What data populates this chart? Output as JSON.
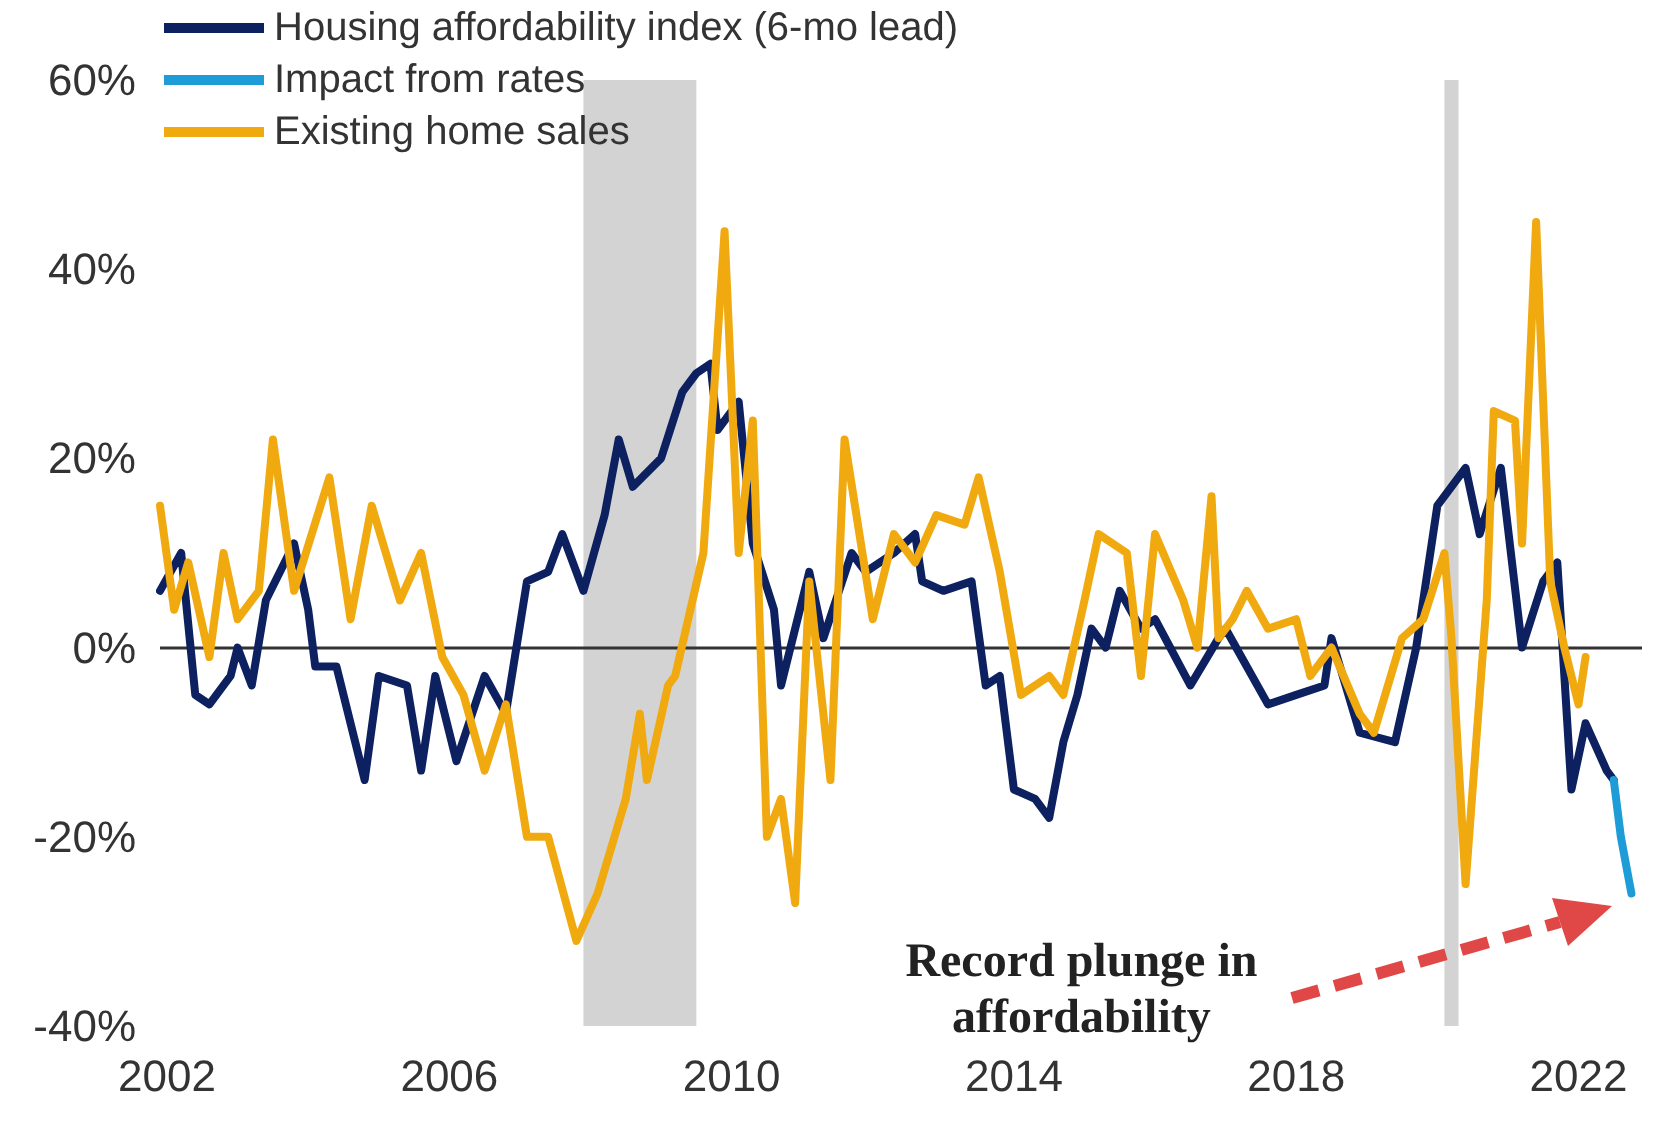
{
  "chart_data": {
    "type": "line",
    "xlim": [
      2001.9,
      2022.9
    ],
    "xticks": [
      2002,
      2006,
      2010,
      2014,
      2018,
      2022
    ],
    "ylim": [
      -40,
      60
    ],
    "yticks": [
      {
        "value": -40,
        "label": "-40%"
      },
      {
        "value": -20,
        "label": "-20%"
      },
      {
        "value": 0,
        "label": "0%"
      },
      {
        "value": 20,
        "label": "20%"
      },
      {
        "value": 40,
        "label": "40%"
      },
      {
        "value": 60,
        "label": "60%"
      }
    ],
    "grid": false,
    "legend": "top left",
    "marker": "none",
    "line_style": "solid",
    "series": [
      {
        "name": "Housing affordability index (6-mo lead)",
        "color": "#0d2160",
        "x": [
          2001.9,
          2002.2,
          2002.4,
          2002.6,
          2002.9,
          2003.0,
          2003.2,
          2003.4,
          2003.8,
          2004.0,
          2004.1,
          2004.4,
          2004.8,
          2005.0,
          2005.4,
          2005.6,
          2005.8,
          2006.1,
          2006.5,
          2006.8,
          2007.1,
          2007.4,
          2007.6,
          2007.9,
          2008.2,
          2008.4,
          2008.6,
          2009.0,
          2009.3,
          2009.5,
          2009.7,
          2009.8,
          2010.1,
          2010.3,
          2010.6,
          2010.7,
          2011.1,
          2011.3,
          2011.7,
          2011.9,
          2012.3,
          2012.6,
          2012.7,
          2013.0,
          2013.4,
          2013.6,
          2013.8,
          2014.0,
          2014.3,
          2014.5,
          2014.7,
          2014.9,
          2015.1,
          2015.3,
          2015.5,
          2015.8,
          2016.0,
          2016.5,
          2016.9,
          2017.0,
          2017.6,
          2018.0,
          2018.4,
          2018.5,
          2018.9,
          2019.4,
          2019.7,
          2020.0,
          2020.4,
          2020.6,
          2020.9,
          2021.2,
          2021.5,
          2021.7,
          2021.9,
          2022.1,
          2022.4,
          2022.5
        ],
        "values": [
          6,
          10,
          -5,
          -6,
          -3,
          0,
          -4,
          5,
          11,
          4,
          -2,
          -2,
          -14,
          -3,
          -4,
          -13,
          -3,
          -12,
          -3,
          -7,
          7,
          8,
          12,
          6,
          14,
          22,
          17,
          20,
          27,
          29,
          30,
          23,
          26,
          11,
          4,
          -4,
          8,
          1,
          10,
          8,
          10,
          12,
          7,
          6,
          7,
          -4,
          -3,
          -15,
          -16,
          -18,
          -10,
          -5,
          2,
          0,
          6,
          2,
          3,
          -4,
          1,
          2,
          -6,
          -5,
          -4,
          1,
          -9,
          -10,
          0,
          15,
          19,
          12,
          19,
          0,
          7,
          9,
          -15,
          -8,
          -13,
          -14
        ]
      },
      {
        "name": "Impact from rates",
        "color": "#1e9cd7",
        "x": [
          2022.5,
          2022.6,
          2022.75
        ],
        "values": [
          -14,
          -20,
          -26
        ]
      },
      {
        "name": "Existing home sales",
        "color": "#f0aa10",
        "x": [
          2001.9,
          2002.1,
          2002.3,
          2002.6,
          2002.8,
          2003.0,
          2003.3,
          2003.5,
          2003.8,
          2004.3,
          2004.6,
          2004.9,
          2005.3,
          2005.6,
          2005.9,
          2006.2,
          2006.5,
          2006.8,
          2007.1,
          2007.4,
          2007.8,
          2008.1,
          2008.5,
          2008.7,
          2008.8,
          2009.1,
          2009.2,
          2009.6,
          2009.9,
          2010.1,
          2010.3,
          2010.5,
          2010.7,
          2010.9,
          2011.1,
          2011.4,
          2011.6,
          2012.0,
          2012.3,
          2012.6,
          2012.9,
          2013.3,
          2013.5,
          2013.8,
          2014.1,
          2014.5,
          2014.7,
          2015.0,
          2015.2,
          2015.6,
          2015.8,
          2016.0,
          2016.4,
          2016.6,
          2016.8,
          2016.9,
          2017.1,
          2017.3,
          2017.6,
          2018.0,
          2018.2,
          2018.5,
          2018.9,
          2019.1,
          2019.5,
          2019.8,
          2020.1,
          2020.2,
          2020.4,
          2020.7,
          2020.8,
          2021.1,
          2021.2,
          2021.4,
          2021.6,
          2021.8,
          2022.0,
          2022.1
        ],
        "values": [
          15,
          4,
          9,
          -1,
          10,
          3,
          6,
          22,
          6,
          18,
          3,
          15,
          5,
          10,
          -1,
          -5,
          -13,
          -6,
          -20,
          -20,
          -31,
          -26,
          -16,
          -7,
          -14,
          -4,
          -3,
          10,
          44,
          10,
          24,
          -20,
          -16,
          -27,
          7,
          -14,
          22,
          3,
          12,
          9,
          14,
          13,
          18,
          8,
          -5,
          -3,
          -5,
          5,
          12,
          10,
          -3,
          12,
          5,
          0,
          16,
          1,
          3,
          6,
          2,
          3,
          -3,
          0,
          -7,
          -9,
          1,
          3,
          10,
          1,
          -25,
          5,
          25,
          24,
          11,
          45,
          7,
          0,
          -6,
          -1
        ]
      }
    ],
    "ref_lines": [
      {
        "axis": "y",
        "value": 0,
        "color": "#333333"
      }
    ],
    "bands": [
      {
        "axis": "x",
        "from": 2007.9,
        "to": 2009.5,
        "color": "#d3d3d3"
      },
      {
        "axis": "x",
        "from": 2020.1,
        "to": 2020.3,
        "color": "#d3d3d3"
      }
    ],
    "annotations": [
      "Record plunge in affordability"
    ]
  }
}
